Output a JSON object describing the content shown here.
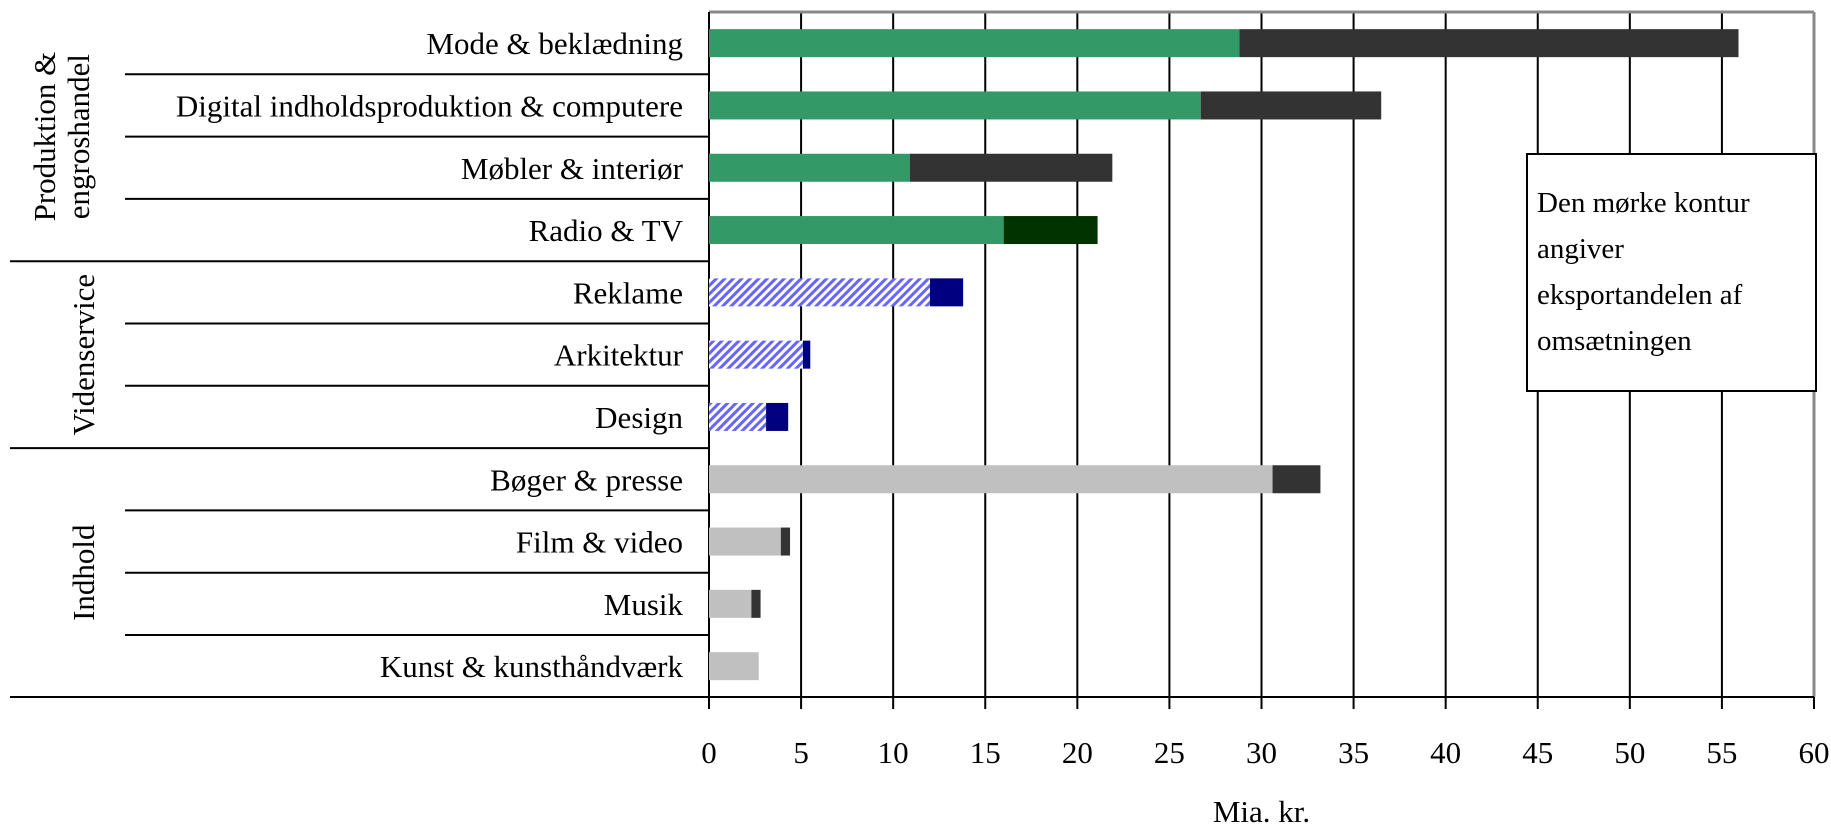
{
  "chart_data": {
    "type": "bar",
    "orientation": "horizontal",
    "stacked": true,
    "xlabel": "Mia. kr.",
    "xlim": [
      0,
      60
    ],
    "xticks": [
      0,
      5,
      10,
      15,
      20,
      25,
      30,
      35,
      40,
      45,
      50,
      55,
      60
    ],
    "grid": "vertical",
    "note": "Den mørke kontur angiver eksportandelen af omsætningen",
    "groups": [
      {
        "name": "Produktion & engroshandel",
        "fill": "#339966",
        "pattern": "solid",
        "categories": [
          {
            "label": "Mode & beklædning",
            "domestic": 28.8,
            "export": 27.1,
            "export_color": "#333333"
          },
          {
            "label": "Digital indholdsproduktion & computere",
            "domestic": 26.7,
            "export": 9.8,
            "export_color": "#333333"
          },
          {
            "label": "Møbler & interiør",
            "domestic": 10.9,
            "export": 11.0,
            "export_color": "#333333"
          },
          {
            "label": "Radio & TV",
            "domestic": 16.0,
            "export": 5.1,
            "export_color": "#003300"
          }
        ]
      },
      {
        "name": "Videnservice",
        "fill": "#6666ff",
        "pattern": "hatched",
        "categories": [
          {
            "label": "Reklame",
            "domestic": 12.0,
            "export": 1.8,
            "export_color": "#000080"
          },
          {
            "label": "Arkitektur",
            "domestic": 5.1,
            "export": 0.4,
            "export_color": "#000080"
          },
          {
            "label": "Design",
            "domestic": 3.1,
            "export": 1.2,
            "export_color": "#000080"
          }
        ]
      },
      {
        "name": "Indhold",
        "fill": "#c0c0c0",
        "pattern": "solid",
        "categories": [
          {
            "label": "Bøger & presse",
            "domestic": 30.6,
            "export": 2.6,
            "export_color": "#333333"
          },
          {
            "label": "Film & video",
            "domestic": 3.9,
            "export": 0.5,
            "export_color": "#333333"
          },
          {
            "label": "Musik",
            "domestic": 2.3,
            "export": 0.5,
            "export_color": "#333333"
          },
          {
            "label": "Kunst & kunsthåndværk",
            "domestic": 2.7,
            "export": 0.0,
            "export_color": "#333333"
          }
        ]
      }
    ]
  }
}
